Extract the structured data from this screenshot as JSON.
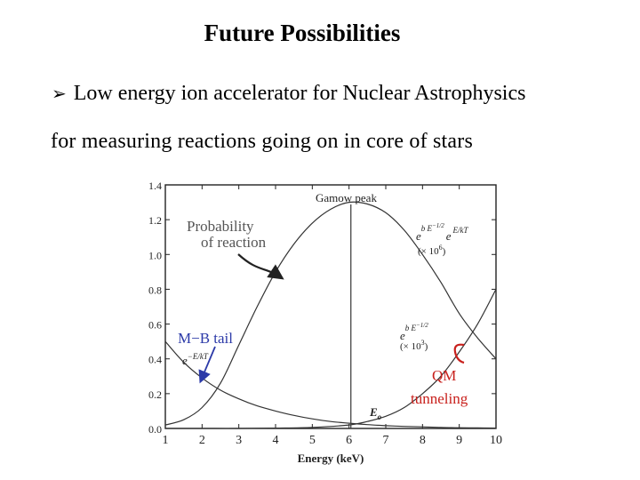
{
  "slide": {
    "title": "Future Possibilities",
    "bullet_symbol": "➢",
    "bullet_text": "Low energy ion accelerator for Nuclear Astrophysics",
    "bullet_text_cont": "for measuring reactions going on in core of stars"
  },
  "chart_data": {
    "type": "line",
    "xlabel": "Energy (keV)",
    "ylabel": "",
    "xlim": [
      1,
      10
    ],
    "ylim": [
      0,
      1.4
    ],
    "x_ticks": [
      1,
      2,
      3,
      4,
      5,
      6,
      7,
      8,
      9,
      10
    ],
    "y_ticks": [
      0.0,
      0.2,
      0.4,
      0.6,
      0.8,
      1.0,
      1.2,
      1.4
    ],
    "y_tick_labels": [
      "0.0",
      "0.2",
      "0.4",
      "0.6",
      "0.8",
      "1.0",
      "1.2",
      "1.4"
    ],
    "series": [
      {
        "x": [
          1,
          1.5,
          2,
          2.5,
          3,
          3.5,
          4,
          4.5,
          5,
          5.5,
          6,
          6.5,
          7,
          7.5,
          8,
          8.5,
          9,
          9.5,
          10
        ],
        "values": [
          0.02,
          0.05,
          0.12,
          0.26,
          0.48,
          0.7,
          0.9,
          1.06,
          1.18,
          1.26,
          1.3,
          1.29,
          1.24,
          1.14,
          1.0,
          0.84,
          0.66,
          0.52,
          0.4
        ],
        "color": "#333333"
      },
      {
        "x": [
          1,
          1.5,
          2,
          2.5,
          3,
          3.5,
          4,
          4.5,
          5,
          5.5,
          6,
          6.5,
          7,
          7.5,
          8,
          8.5,
          9,
          9.5,
          10
        ],
        "values": [
          0.5,
          0.38,
          0.29,
          0.22,
          0.17,
          0.13,
          0.1,
          0.075,
          0.055,
          0.04,
          0.03,
          0.022,
          0.016,
          0.012,
          0.009,
          0.006,
          0.004,
          0.003,
          0.002
        ],
        "color": "#333333"
      },
      {
        "x": [
          1,
          2,
          3,
          4,
          5,
          6,
          6.5,
          7,
          7.5,
          8,
          8.5,
          9,
          9.5,
          10
        ],
        "values": [
          0.0,
          0.0,
          0.0,
          0.002,
          0.006,
          0.02,
          0.04,
          0.07,
          0.12,
          0.2,
          0.3,
          0.44,
          0.6,
          0.8
        ],
        "color": "#333333"
      }
    ],
    "gamow_peak_x": 6.05,
    "annotations": {
      "gamow_peak": "Gamow peak",
      "probability_line1": "Probability",
      "probability_line2": "of reaction",
      "mb_tail": "M−B tail",
      "mb_formula_base": "e",
      "mb_formula_exp": "−E/kT",
      "product_e1": "e",
      "product_exp1": "b E",
      "product_exp1_sup": "−1/2",
      "product_e2": "e",
      "product_exp2": "E/kT",
      "product_scale": "(× 10",
      "product_scale_sup": "6",
      "product_scale_end": ")",
      "tunnel_e": "e",
      "tunnel_exp": "b E",
      "tunnel_exp_sup": "−1/2",
      "tunnel_scale": "(× 10",
      "tunnel_scale_sup": "3",
      "tunnel_scale_end": ")",
      "qm_line1": "QM",
      "qm_line2": "tunneling",
      "e0_base": "E",
      "e0_sub": "o"
    },
    "colors": {
      "probability": "#555555",
      "mb_tail": "#2c3aa8",
      "qm": "#c8201c",
      "curve": "#333333"
    }
  }
}
